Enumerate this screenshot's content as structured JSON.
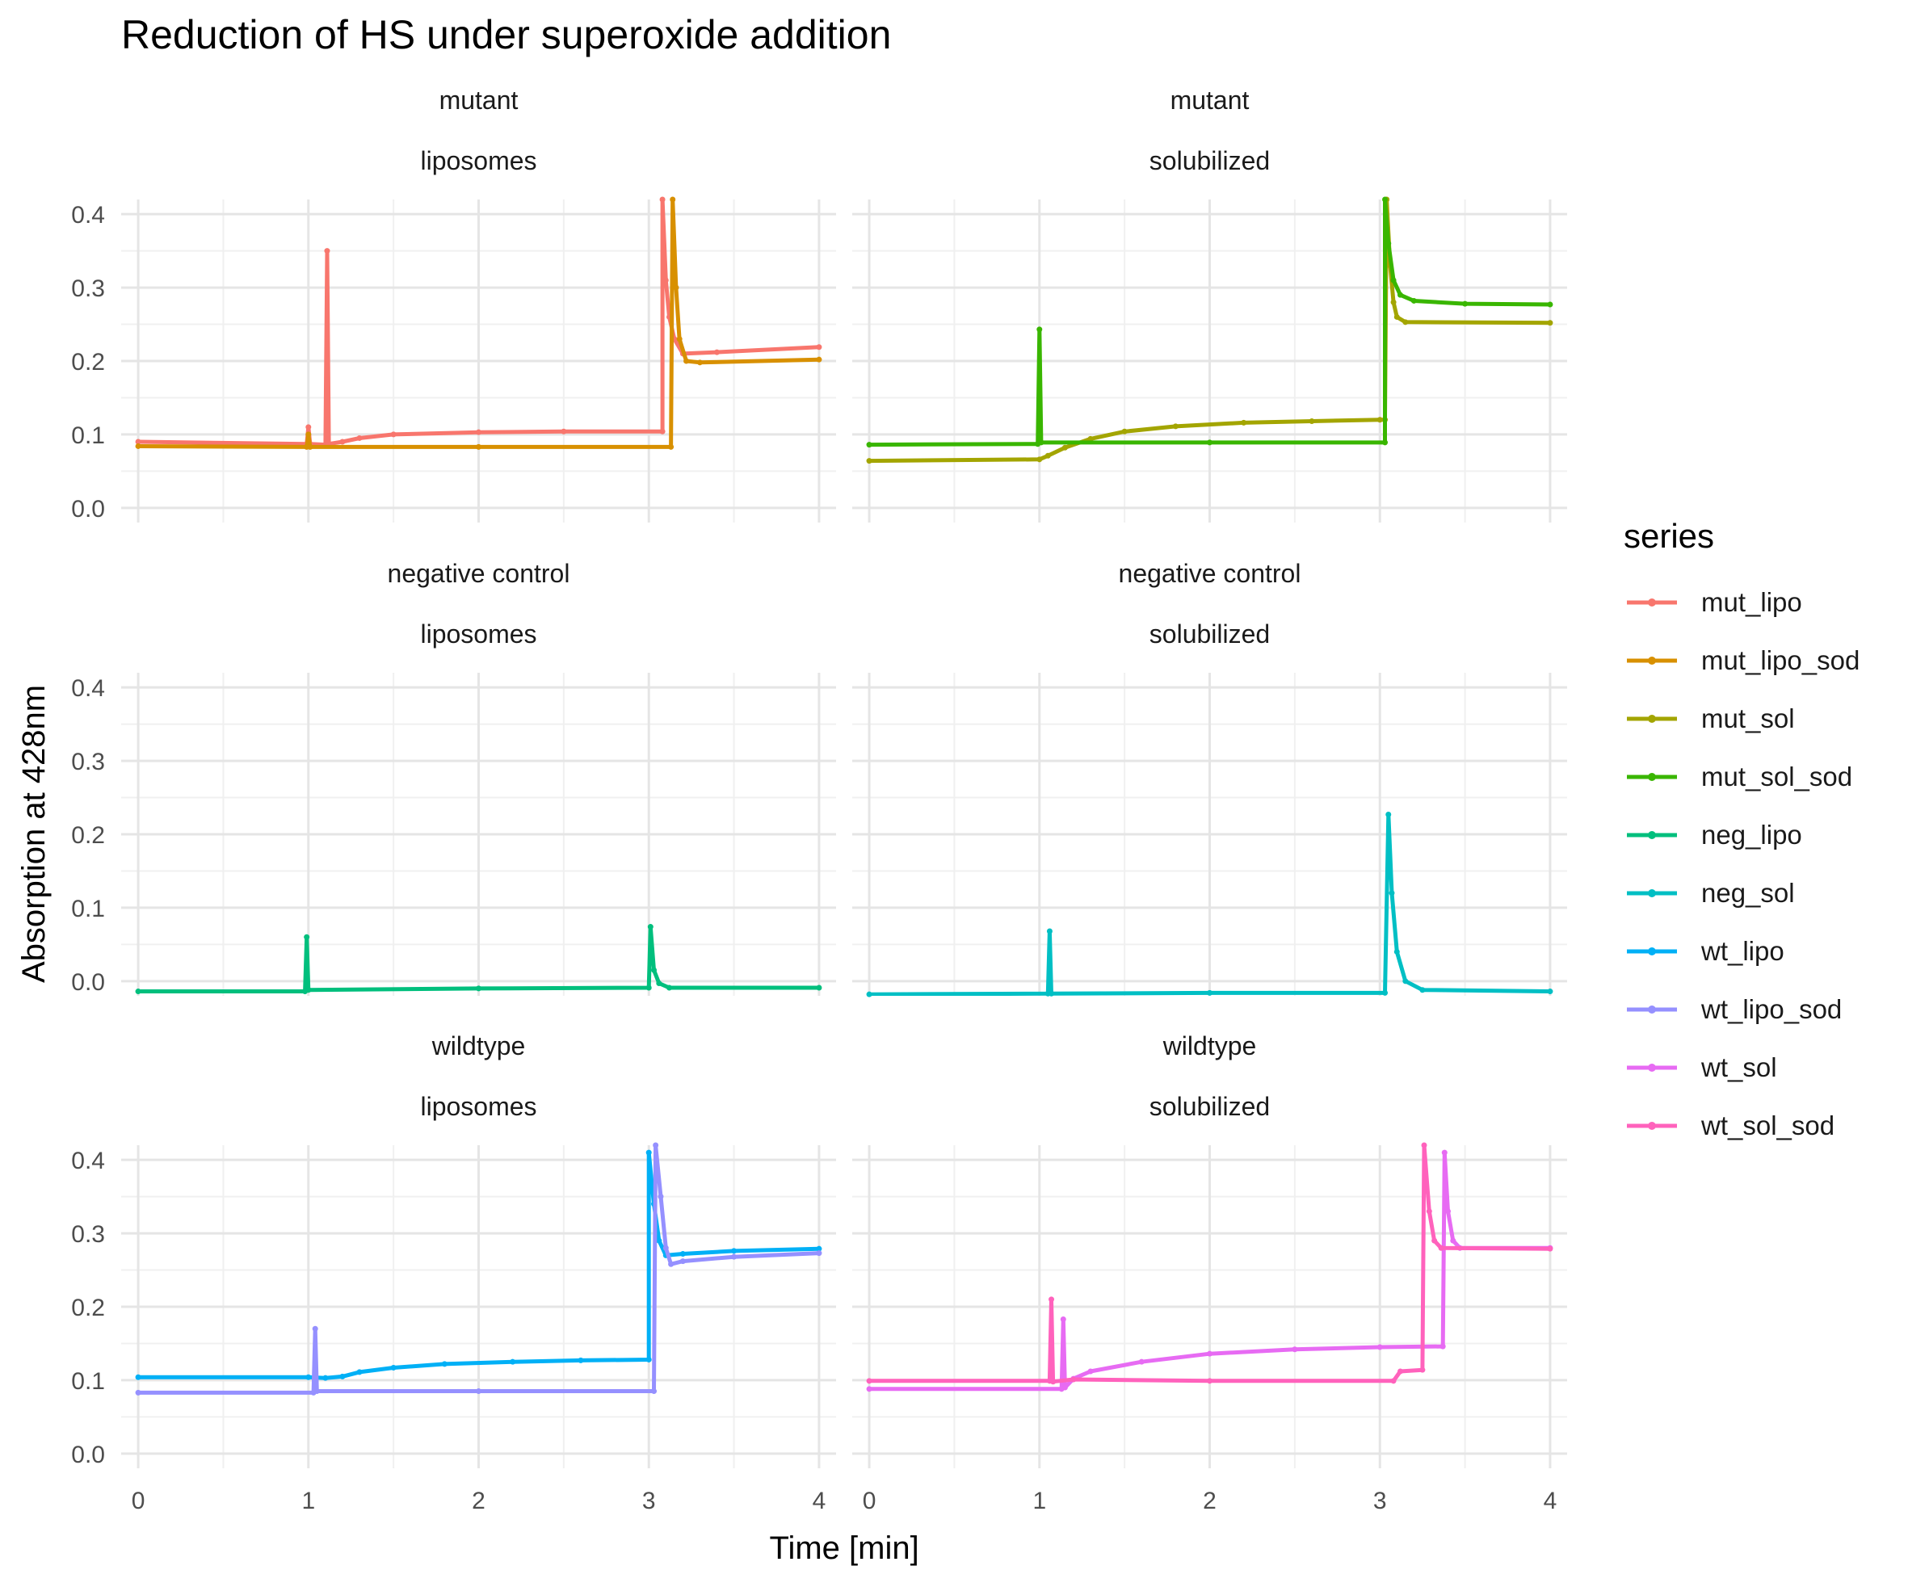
{
  "chart_data": {
    "type": "line",
    "title": "Reduction of HS under superoxide addition",
    "xlabel": "Time [min]",
    "ylabel": "Absorption at 428nm",
    "xlim": [
      0,
      4
    ],
    "ylim": [
      0,
      0.4
    ],
    "x_ticks": [
      "0",
      "1",
      "2",
      "3",
      "4"
    ],
    "y_ticks": [
      "0.0",
      "0.1",
      "0.2",
      "0.3",
      "0.4"
    ],
    "grid": true,
    "legend_title": "series",
    "legend_position": "right",
    "legend": [
      {
        "name": "mut_lipo",
        "color": "#F8766D"
      },
      {
        "name": "mut_lipo_sod",
        "color": "#D89000"
      },
      {
        "name": "mut_sol",
        "color": "#A3A500"
      },
      {
        "name": "mut_sol_sod",
        "color": "#39B600"
      },
      {
        "name": "neg_lipo",
        "color": "#00BF7D"
      },
      {
        "name": "neg_sol",
        "color": "#00BFC4"
      },
      {
        "name": "wt_lipo",
        "color": "#00B0F6"
      },
      {
        "name": "wt_lipo_sod",
        "color": "#9590FF"
      },
      {
        "name": "wt_sol",
        "color": "#E76BF3"
      },
      {
        "name": "wt_sol_sod",
        "color": "#FF62BC"
      }
    ],
    "panels": [
      {
        "strip1": "mutant",
        "strip2": "liposomes",
        "series": [
          {
            "name": "mut_lipo",
            "points": [
              [
                0,
                0.09
              ],
              [
                0.99,
                0.087
              ],
              [
                1.0,
                0.11
              ],
              [
                1.01,
                0.087
              ],
              [
                1.1,
                0.086
              ],
              [
                1.11,
                0.35
              ],
              [
                1.12,
                0.087
              ],
              [
                1.2,
                0.09
              ],
              [
                1.3,
                0.095
              ],
              [
                1.5,
                0.1
              ],
              [
                2.0,
                0.103
              ],
              [
                2.5,
                0.104
              ],
              [
                3.08,
                0.104
              ],
              [
                3.08,
                0.42
              ],
              [
                3.1,
                0.31
              ],
              [
                3.12,
                0.26
              ],
              [
                3.15,
                0.23
              ],
              [
                3.2,
                0.21
              ],
              [
                3.4,
                0.212
              ],
              [
                4.0,
                0.219
              ]
            ]
          },
          {
            "name": "mut_lipo_sod",
            "points": [
              [
                0,
                0.084
              ],
              [
                0.99,
                0.083
              ],
              [
                1.0,
                0.1
              ],
              [
                1.01,
                0.083
              ],
              [
                2.0,
                0.083
              ],
              [
                3.13,
                0.083
              ],
              [
                3.14,
                0.42
              ],
              [
                3.16,
                0.3
              ],
              [
                3.18,
                0.23
              ],
              [
                3.22,
                0.2
              ],
              [
                3.3,
                0.198
              ],
              [
                4.0,
                0.202
              ]
            ]
          }
        ]
      },
      {
        "strip1": "mutant",
        "strip2": "solubilized",
        "series": [
          {
            "name": "mut_sol",
            "points": [
              [
                0,
                0.064
              ],
              [
                1.0,
                0.066
              ],
              [
                1.05,
                0.071
              ],
              [
                1.15,
                0.082
              ],
              [
                1.3,
                0.094
              ],
              [
                1.5,
                0.104
              ],
              [
                1.8,
                0.111
              ],
              [
                2.2,
                0.116
              ],
              [
                2.6,
                0.118
              ],
              [
                3.0,
                0.12
              ],
              [
                3.03,
                0.12
              ],
              [
                3.04,
                0.42
              ],
              [
                3.06,
                0.33
              ],
              [
                3.08,
                0.28
              ],
              [
                3.1,
                0.26
              ],
              [
                3.15,
                0.253
              ],
              [
                4.0,
                0.252
              ]
            ]
          },
          {
            "name": "mut_sol_sod",
            "points": [
              [
                0,
                0.086
              ],
              [
                0.99,
                0.087
              ],
              [
                1.0,
                0.243
              ],
              [
                1.01,
                0.089
              ],
              [
                2.0,
                0.089
              ],
              [
                3.03,
                0.089
              ],
              [
                3.03,
                0.42
              ],
              [
                3.05,
                0.36
              ],
              [
                3.08,
                0.31
              ],
              [
                3.12,
                0.29
              ],
              [
                3.2,
                0.282
              ],
              [
                3.5,
                0.278
              ],
              [
                4.0,
                0.277
              ]
            ]
          }
        ]
      },
      {
        "strip1": "negative control",
        "strip2": "liposomes",
        "series": [
          {
            "name": "neg_lipo",
            "points": [
              [
                0,
                -0.014
              ],
              [
                0.98,
                -0.014
              ],
              [
                0.99,
                0.06
              ],
              [
                1.0,
                -0.012
              ],
              [
                2.0,
                -0.01
              ],
              [
                3.0,
                -0.009
              ],
              [
                3.01,
                0.074
              ],
              [
                3.03,
                0.015
              ],
              [
                3.06,
                -0.003
              ],
              [
                3.12,
                -0.009
              ],
              [
                4.0,
                -0.009
              ]
            ]
          }
        ]
      },
      {
        "strip1": "negative control",
        "strip2": "solubilized",
        "series": [
          {
            "name": "neg_sol",
            "points": [
              [
                0,
                -0.018
              ],
              [
                1.05,
                -0.017
              ],
              [
                1.06,
                0.068
              ],
              [
                1.07,
                -0.017
              ],
              [
                2.0,
                -0.016
              ],
              [
                3.03,
                -0.016
              ],
              [
                3.05,
                0.227
              ],
              [
                3.07,
                0.12
              ],
              [
                3.1,
                0.04
              ],
              [
                3.15,
                0.0
              ],
              [
                3.25,
                -0.012
              ],
              [
                4.0,
                -0.014
              ]
            ]
          }
        ]
      },
      {
        "strip1": "wildtype",
        "strip2": "liposomes",
        "series": [
          {
            "name": "wt_lipo",
            "points": [
              [
                0,
                0.104
              ],
              [
                1.0,
                0.104
              ],
              [
                1.1,
                0.103
              ],
              [
                1.2,
                0.105
              ],
              [
                1.3,
                0.111
              ],
              [
                1.5,
                0.117
              ],
              [
                1.8,
                0.122
              ],
              [
                2.2,
                0.125
              ],
              [
                2.6,
                0.127
              ],
              [
                3.0,
                0.128
              ],
              [
                3.0,
                0.41
              ],
              [
                3.03,
                0.34
              ],
              [
                3.06,
                0.29
              ],
              [
                3.1,
                0.27
              ],
              [
                3.2,
                0.272
              ],
              [
                3.5,
                0.276
              ],
              [
                4.0,
                0.279
              ]
            ]
          },
          {
            "name": "wt_lipo_sod",
            "points": [
              [
                0,
                0.083
              ],
              [
                1.03,
                0.083
              ],
              [
                1.04,
                0.17
              ],
              [
                1.05,
                0.085
              ],
              [
                2.0,
                0.085
              ],
              [
                3.03,
                0.085
              ],
              [
                3.04,
                0.42
              ],
              [
                3.07,
                0.35
              ],
              [
                3.1,
                0.28
              ],
              [
                3.13,
                0.258
              ],
              [
                3.2,
                0.262
              ],
              [
                3.5,
                0.268
              ],
              [
                4.0,
                0.273
              ]
            ]
          }
        ]
      },
      {
        "strip1": "wildtype",
        "strip2": "solubilized",
        "series": [
          {
            "name": "wt_sol",
            "points": [
              [
                0,
                0.088
              ],
              [
                1.13,
                0.088
              ],
              [
                1.14,
                0.183
              ],
              [
                1.15,
                0.09
              ],
              [
                1.2,
                0.102
              ],
              [
                1.3,
                0.112
              ],
              [
                1.6,
                0.125
              ],
              [
                2.0,
                0.136
              ],
              [
                2.5,
                0.142
              ],
              [
                3.0,
                0.145
              ],
              [
                3.37,
                0.146
              ],
              [
                3.38,
                0.41
              ],
              [
                3.4,
                0.33
              ],
              [
                3.43,
                0.29
              ],
              [
                3.47,
                0.28
              ],
              [
                4.0,
                0.28
              ]
            ]
          },
          {
            "name": "wt_sol_sod",
            "points": [
              [
                0,
                0.099
              ],
              [
                1.06,
                0.099
              ],
              [
                1.07,
                0.21
              ],
              [
                1.08,
                0.098
              ],
              [
                1.2,
                0.101
              ],
              [
                2.0,
                0.099
              ],
              [
                3.08,
                0.099
              ],
              [
                3.12,
                0.112
              ],
              [
                3.25,
                0.114
              ],
              [
                3.26,
                0.42
              ],
              [
                3.29,
                0.33
              ],
              [
                3.32,
                0.29
              ],
              [
                3.36,
                0.28
              ],
              [
                4.0,
                0.279
              ]
            ]
          }
        ]
      }
    ]
  }
}
